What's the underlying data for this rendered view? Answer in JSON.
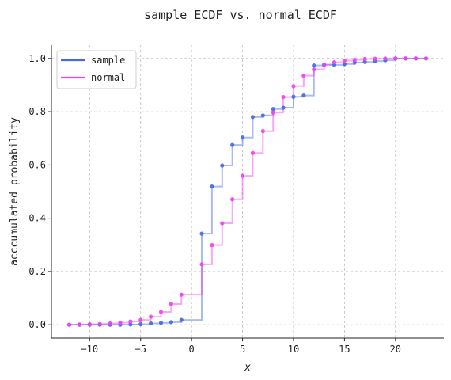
{
  "chart_data": {
    "type": "line",
    "title": "sample ECDF vs. normal ECDF",
    "xlabel": "x",
    "ylabel": "acccumulated probability",
    "xlim": [
      -13.75,
      24.75
    ],
    "ylim": [
      -0.05,
      1.05
    ],
    "xticks": [
      -10,
      -5,
      0,
      5,
      10,
      15,
      20
    ],
    "xtick_labels": [
      "−10",
      "−5",
      "0",
      "5",
      "10",
      "15",
      "20"
    ],
    "yticks": [
      0.0,
      0.2,
      0.4,
      0.6,
      0.8,
      1.0
    ],
    "ytick_labels": [
      "0.0",
      "0.2",
      "0.4",
      "0.6",
      "0.8",
      "1.0"
    ],
    "grid": true,
    "legend_position": "top-left",
    "series": [
      {
        "name": "sample",
        "color": "#4169e1",
        "x": [
          -12,
          -11,
          -10,
          -9,
          -8,
          -7,
          -6,
          -5,
          -4,
          -3,
          -2,
          -1,
          1,
          2,
          3,
          4,
          5,
          6,
          7,
          8,
          9,
          10,
          11,
          12,
          13,
          14,
          15,
          16,
          17,
          18,
          19,
          20,
          21,
          22,
          23
        ],
        "y": [
          0.0,
          0.0,
          0.0,
          0.0,
          0.0,
          0.0,
          0.001,
          0.002,
          0.005,
          0.007,
          0.01,
          0.018,
          0.342,
          0.519,
          0.598,
          0.675,
          0.703,
          0.78,
          0.786,
          0.81,
          0.815,
          0.856,
          0.861,
          0.974,
          0.976,
          0.976,
          0.979,
          0.985,
          0.987,
          0.99,
          0.993,
          1.0,
          1.0,
          1.0,
          1.0
        ]
      },
      {
        "name": "normal",
        "color": "#f03ff0",
        "x": [
          -12,
          -11,
          -10,
          -9,
          -8,
          -7,
          -6,
          -5,
          -4,
          -3,
          -2,
          -1,
          1,
          2,
          3,
          4,
          5,
          6,
          7,
          8,
          9,
          10,
          11,
          12,
          13,
          14,
          15,
          16,
          17,
          18,
          19,
          20,
          21,
          22,
          23
        ],
        "y": [
          0.0,
          0.001,
          0.002,
          0.003,
          0.005,
          0.008,
          0.012,
          0.018,
          0.03,
          0.048,
          0.078,
          0.113,
          0.227,
          0.299,
          0.381,
          0.471,
          0.559,
          0.645,
          0.727,
          0.797,
          0.855,
          0.896,
          0.935,
          0.959,
          0.977,
          0.986,
          0.992,
          0.995,
          0.998,
          0.999,
          1.0,
          1.0,
          1.0,
          1.0,
          1.0
        ]
      }
    ]
  }
}
